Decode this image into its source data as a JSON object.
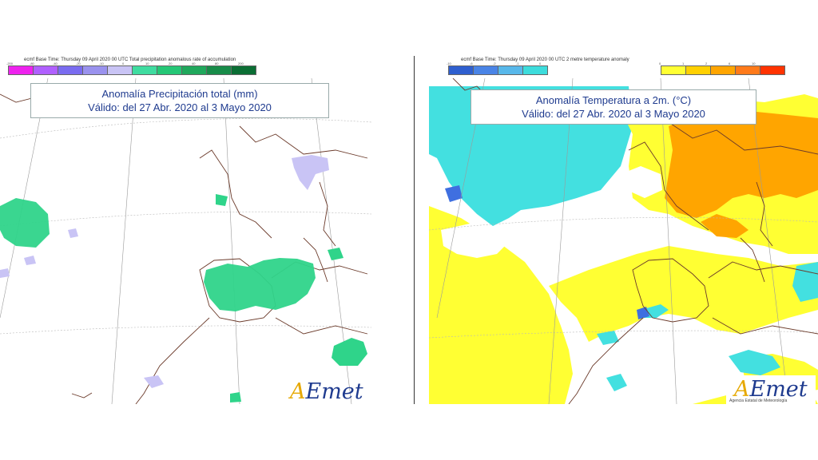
{
  "left_panel": {
    "header": "ecmf  Base Time: Thursday 09 April 2020 00 UTC Total precipitation anomalous rate of accumulation",
    "title_line1": "Anomalía Precipitación total (mm)",
    "title_line2": "Válido: del 27 Abr. 2020 al 3 Mayo 2020",
    "legend_ticks": [
      "-200",
      "-80",
      "-40",
      "-20",
      "-10",
      "0",
      "10",
      "20",
      "40",
      "80",
      "200"
    ],
    "legend_colors": [
      "#ee22ee",
      "#b060ff",
      "#7a6cf0",
      "#9a92ee",
      "#c9c4f5",
      "#3fdca0",
      "#25c776",
      "#20a85c",
      "#188c49",
      "#0b6e34"
    ],
    "logo": "AEmet"
  },
  "right_panel": {
    "header": "ecmf  Base Time: Thursday 09 April 2020 00 UTC 2 metre temperature anomaly",
    "title_line1": "Anomalía Temperatura a 2m. (°C)",
    "title_line2": "Válido: del 27 Abr. 2020 al 3 Mayo 2020",
    "legend_ticks_cold": [
      "-10",
      "-6",
      "-2",
      "-1",
      "0"
    ],
    "legend_ticks_warm": [
      "0",
      "1",
      "2",
      "6",
      "10"
    ],
    "legend_colors_cold": [
      "#2f5fcf",
      "#4a84e6",
      "#58b8ea",
      "#3ddcdc"
    ],
    "legend_colors_warm": [
      "#ffff33",
      "#ffd000",
      "#ffa500",
      "#ff7a1a",
      "#ff3300"
    ],
    "logo": "AEmet",
    "logo_sub": "Agencia Estatal de Meteorología"
  }
}
